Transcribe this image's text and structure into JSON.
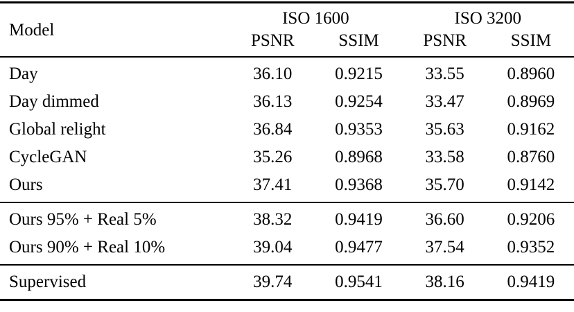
{
  "table": {
    "header": {
      "model": "Model",
      "group1": "ISO 1600",
      "group2": "ISO 3200",
      "sub": [
        "PSNR",
        "SSIM",
        "PSNR",
        "SSIM"
      ]
    },
    "groups": [
      {
        "rows": [
          {
            "model": "Day",
            "v": [
              "36.10",
              "0.9215",
              "33.55",
              "0.8960"
            ]
          },
          {
            "model": "Day dimmed",
            "v": [
              "36.13",
              "0.9254",
              "33.47",
              "0.8969"
            ]
          },
          {
            "model": "Global relight",
            "v": [
              "36.84",
              "0.9353",
              "35.63",
              "0.9162"
            ]
          },
          {
            "model": "CycleGAN",
            "v": [
              "35.26",
              "0.8968",
              "33.58",
              "0.8760"
            ]
          },
          {
            "model": "Ours",
            "v": [
              "37.41",
              "0.9368",
              "35.70",
              "0.9142"
            ]
          }
        ]
      },
      {
        "rows": [
          {
            "model": "Ours 95% + Real 5%",
            "v": [
              "38.32",
              "0.9419",
              "36.60",
              "0.9206"
            ]
          },
          {
            "model": "Ours 90% + Real 10%",
            "v": [
              "39.04",
              "0.9477",
              "37.54",
              "0.9352"
            ]
          }
        ]
      },
      {
        "rows": [
          {
            "model": "Supervised",
            "v": [
              "39.74",
              "0.9541",
              "38.16",
              "0.9419"
            ]
          }
        ]
      }
    ]
  }
}
